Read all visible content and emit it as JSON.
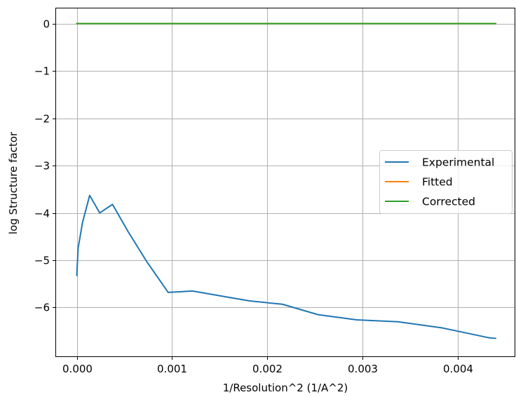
{
  "chart_data": {
    "type": "line",
    "title": "",
    "xlabel": "1/Resolution^2 (1/A^2)",
    "ylabel": "log Structure factor",
    "xlim": [
      -0.000218,
      0.0046
    ],
    "ylim": [
      -7.03,
      0.32
    ],
    "grid": true,
    "legend_position": "center-right",
    "x_ticks": [
      0.0,
      0.001,
      0.002,
      0.003,
      0.004
    ],
    "x_tick_labels": [
      "0.000",
      "0.001",
      "0.002",
      "0.003",
      "0.004"
    ],
    "y_ticks": [
      0,
      -1,
      -2,
      -3,
      -4,
      -5,
      -6
    ],
    "y_tick_labels": [
      "0",
      "−1",
      "−2",
      "−3",
      "−4",
      "−5",
      "−6"
    ],
    "series": [
      {
        "name": "Experimental",
        "color": "#1f77b4",
        "x": [
          0.0,
          1.3e-05,
          6e-05,
          0.000135,
          0.00024,
          0.000375,
          0.00054,
          0.000735,
          0.00096,
          0.001215,
          0.0015,
          0.001815,
          0.00216,
          0.002535,
          0.00294,
          0.003375,
          0.00384,
          0.004335,
          0.0044
        ],
        "y": [
          -5.32,
          -4.75,
          -4.2,
          -3.63,
          -4.0,
          -3.82,
          -4.4,
          -5.03,
          -5.68,
          -5.65,
          -5.75,
          -5.86,
          -5.93,
          -6.15,
          -6.26,
          -6.3,
          -6.43,
          -6.64,
          -6.65
        ]
      },
      {
        "name": "Fitted",
        "color": "#ff7f0e",
        "x": [
          0.0,
          0.0044
        ],
        "y": [
          0.0,
          0.0
        ]
      },
      {
        "name": "Corrected",
        "color": "#2ca02c",
        "x": [
          0.0,
          0.0044
        ],
        "y": [
          0.0,
          0.0
        ]
      }
    ]
  }
}
